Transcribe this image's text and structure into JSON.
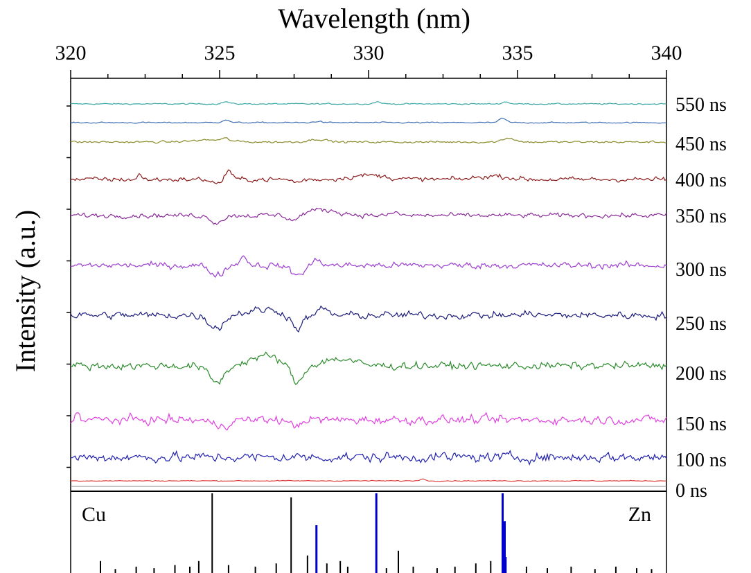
{
  "chart_data": {
    "type": "line",
    "title": "",
    "xlabel": "Wavelength (nm)",
    "ylabel": "Intensity (a.u.)",
    "xlim": [
      320,
      340
    ],
    "x_ticks": [
      320,
      325,
      330,
      335,
      340
    ],
    "x_tick_labels": [
      "320",
      "325",
      "330",
      "335",
      "340"
    ],
    "x_minor_step": 1.25,
    "x_axis_position": "top",
    "grid": false,
    "legend": "none; each trace labeled at right with its delay",
    "series": [
      {
        "label": "550 ns",
        "color": "#3aa6a6",
        "noise": 0.6,
        "features": [
          {
            "x": 325.2,
            "amp": 3,
            "w": 0.12
          },
          {
            "x": 330.3,
            "amp": 3,
            "w": 0.12
          },
          {
            "x": 334.6,
            "amp": 3,
            "w": 0.12
          }
        ]
      },
      {
        "label": "",
        "color": "#3f6fb5",
        "noise": 0.6,
        "features": [
          {
            "x": 325.2,
            "amp": 4,
            "w": 0.12
          },
          {
            "x": 328.3,
            "amp": 2,
            "w": 0.12
          },
          {
            "x": 334.5,
            "amp": 6,
            "w": 0.12
          }
        ]
      },
      {
        "label": "450 ns",
        "color": "#8a8a2a",
        "noise": 1.0,
        "features": [
          {
            "x": 324.7,
            "amp": 3,
            "w": 0.6
          },
          {
            "x": 325.2,
            "amp": 3,
            "w": 0.12
          },
          {
            "x": 328.3,
            "amp": 4,
            "w": 0.3
          },
          {
            "x": 334.7,
            "amp": 6,
            "w": 0.2
          }
        ]
      },
      {
        "label": "400 ns",
        "color": "#8b1a1a",
        "noise": 2.2,
        "features": [
          {
            "x": 322.3,
            "amp": 8,
            "w": 0.06
          },
          {
            "x": 324.9,
            "amp": -6,
            "w": 0.15
          },
          {
            "x": 325.3,
            "amp": 14,
            "w": 0.1
          },
          {
            "x": 327.6,
            "amp": -4,
            "w": 0.15
          },
          {
            "x": 330.0,
            "amp": 6,
            "w": 0.6
          },
          {
            "x": 334.2,
            "amp": 5,
            "w": 0.5
          }
        ]
      },
      {
        "label": "350 ns",
        "color": "#8b2a9a",
        "noise": 2.2,
        "features": [
          {
            "x": 324.9,
            "amp": -10,
            "w": 0.2
          },
          {
            "x": 327.5,
            "amp": -9,
            "w": 0.2
          },
          {
            "x": 328.4,
            "amp": 8,
            "w": 0.6
          },
          {
            "x": 330.9,
            "amp": 6,
            "w": 0.08
          }
        ]
      },
      {
        "label": "300 ns",
        "color": "#9b3bd0",
        "noise": 3.0,
        "features": [
          {
            "x": 324.9,
            "amp": -14,
            "w": 0.22
          },
          {
            "x": 325.8,
            "amp": 12,
            "w": 0.15
          },
          {
            "x": 327.6,
            "amp": -14,
            "w": 0.22
          },
          {
            "x": 328.3,
            "amp": 8,
            "w": 0.15
          }
        ]
      },
      {
        "label": "250 ns",
        "color": "#1a1a7a",
        "noise": 3.5,
        "features": [
          {
            "x": 324.9,
            "amp": -18,
            "w": 0.25
          },
          {
            "x": 326.5,
            "amp": 8,
            "w": 0.6
          },
          {
            "x": 327.6,
            "amp": -20,
            "w": 0.2
          },
          {
            "x": 328.5,
            "amp": 10,
            "w": 0.15
          },
          {
            "x": 335.4,
            "amp": 8,
            "w": 0.06
          }
        ]
      },
      {
        "label": "200 ns",
        "color": "#2a8a2a",
        "noise": 3.5,
        "features": [
          {
            "x": 324.9,
            "amp": -24,
            "w": 0.25
          },
          {
            "x": 326.5,
            "amp": 14,
            "w": 0.5
          },
          {
            "x": 327.6,
            "amp": -26,
            "w": 0.2
          },
          {
            "x": 329.0,
            "amp": 10,
            "w": 0.5
          }
        ]
      },
      {
        "label": "150 ns",
        "color": "#e040e0",
        "noise": 4.0,
        "features": [
          {
            "x": 320.2,
            "amp": 8,
            "w": 0.1
          },
          {
            "x": 325.0,
            "amp": -8,
            "w": 0.3
          },
          {
            "x": 327.5,
            "amp": -10,
            "w": 0.15
          }
        ]
      },
      {
        "label": "100 ns",
        "color": "#2020b0",
        "noise": 4.5,
        "features": []
      },
      {
        "label": "0 ns",
        "color": "#e04040",
        "noise": 0.4,
        "features": [
          {
            "x": 331.8,
            "amp": 3,
            "w": 0.08
          }
        ]
      }
    ],
    "reference_panel": {
      "element_labels": [
        "Cu",
        "Zn"
      ],
      "label_colors": [
        "#000000",
        "#0000cc"
      ],
      "Cu_lines": [
        {
          "x": 321.0,
          "h": 0.15
        },
        {
          "x": 321.5,
          "h": 0.05
        },
        {
          "x": 322.2,
          "h": 0.08
        },
        {
          "x": 322.8,
          "h": 0.06
        },
        {
          "x": 323.5,
          "h": 0.1
        },
        {
          "x": 324.0,
          "h": 0.08
        },
        {
          "x": 324.3,
          "h": 0.15
        },
        {
          "x": 324.75,
          "h": 1.0
        },
        {
          "x": 325.3,
          "h": 0.1
        },
        {
          "x": 326.2,
          "h": 0.08
        },
        {
          "x": 326.9,
          "h": 0.12
        },
        {
          "x": 327.4,
          "h": 0.95
        },
        {
          "x": 327.95,
          "h": 0.22
        },
        {
          "x": 328.6,
          "h": 0.12
        },
        {
          "x": 329.05,
          "h": 0.15
        },
        {
          "x": 329.3,
          "h": 0.08
        },
        {
          "x": 330.6,
          "h": 0.06
        },
        {
          "x": 331.0,
          "h": 0.28
        },
        {
          "x": 331.5,
          "h": 0.08
        },
        {
          "x": 332.3,
          "h": 0.06
        },
        {
          "x": 332.9,
          "h": 0.08
        },
        {
          "x": 333.6,
          "h": 0.12
        },
        {
          "x": 334.1,
          "h": 0.15
        },
        {
          "x": 335.3,
          "h": 0.08
        },
        {
          "x": 336.0,
          "h": 0.06
        },
        {
          "x": 336.8,
          "h": 0.08
        },
        {
          "x": 337.6,
          "h": 0.05
        },
        {
          "x": 338.3,
          "h": 0.08
        },
        {
          "x": 339.0,
          "h": 0.06
        },
        {
          "x": 339.5,
          "h": 0.05
        }
      ],
      "Zn_lines": [
        {
          "x": 328.25,
          "h": 0.6
        },
        {
          "x": 330.26,
          "h": 1.0
        },
        {
          "x": 334.5,
          "h": 1.0
        },
        {
          "x": 334.57,
          "h": 0.65
        },
        {
          "x": 334.6,
          "h": 0.2
        }
      ]
    }
  }
}
